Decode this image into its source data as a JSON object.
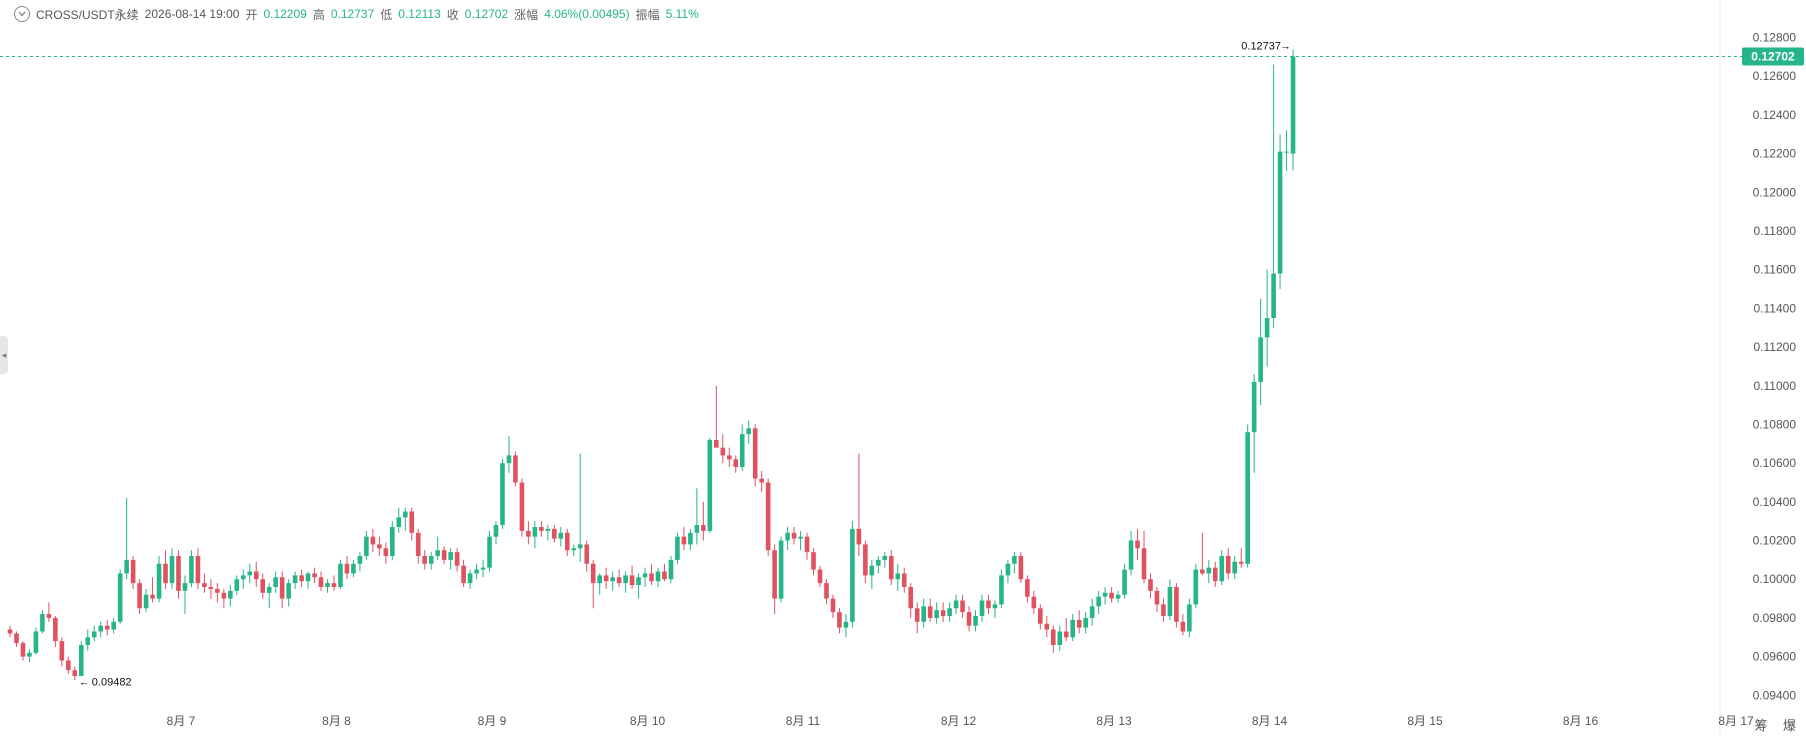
{
  "header": {
    "symbol": "CROSS/USDT永续",
    "datetime": "2026-08-14 19:00",
    "open_label": "开",
    "open": "0.12209",
    "high_label": "高",
    "high": "0.12737",
    "low_label": "低",
    "low": "0.12113",
    "close_label": "收",
    "close": "0.12702",
    "change_label": "涨幅",
    "change": "4.06%(0.00495)",
    "amplitude_label": "振幅",
    "amplitude": "5.11%"
  },
  "corner_text": "筹 爆",
  "colors": {
    "up": "#26b589",
    "down": "#e0525f",
    "accent": "#26b589"
  },
  "chart_data": {
    "type": "candlestick",
    "x_axis_labels": [
      "8月 7",
      "8月 8",
      "8月 9",
      "8月 10",
      "8月 11",
      "8月 12",
      "8月 13",
      "8月 14",
      "8月 15",
      "8月 16",
      "8月 17"
    ],
    "y_ticks": [
      "0.12800",
      "0.12600",
      "0.12400",
      "0.12200",
      "0.12000",
      "0.11800",
      "0.11600",
      "0.11400",
      "0.11200",
      "0.11000",
      "0.10800",
      "0.10600",
      "0.10400",
      "0.10200",
      "0.10000",
      "0.09800",
      "0.09600",
      "0.09400"
    ],
    "ylim": [
      0.0935,
      0.1288
    ],
    "current_price": "0.12702",
    "high_marker": "0.12737",
    "low_marker": "0.09482",
    "grid": false,
    "candles": [
      [
        0.0974,
        0.0976,
        0.097,
        0.0972
      ],
      [
        0.0972,
        0.0973,
        0.0965,
        0.0967
      ],
      [
        0.0967,
        0.0968,
        0.0958,
        0.096
      ],
      [
        0.096,
        0.0964,
        0.0957,
        0.0962
      ],
      [
        0.0962,
        0.0975,
        0.0961,
        0.0973
      ],
      [
        0.0973,
        0.0984,
        0.0972,
        0.0982
      ],
      [
        0.0982,
        0.0988,
        0.0978,
        0.098
      ],
      [
        0.098,
        0.0981,
        0.0965,
        0.0968
      ],
      [
        0.0968,
        0.097,
        0.0955,
        0.0958
      ],
      [
        0.0958,
        0.096,
        0.0951,
        0.0953
      ],
      [
        0.0953,
        0.0955,
        0.0948,
        0.095
      ],
      [
        0.095,
        0.0968,
        0.095,
        0.0966
      ],
      [
        0.0966,
        0.0974,
        0.0963,
        0.097
      ],
      [
        0.097,
        0.0976,
        0.0968,
        0.0973
      ],
      [
        0.0973,
        0.0978,
        0.097,
        0.0976
      ],
      [
        0.0976,
        0.0979,
        0.0971,
        0.0974
      ],
      [
        0.0974,
        0.098,
        0.0972,
        0.0978
      ],
      [
        0.0978,
        0.1005,
        0.0977,
        0.1003
      ],
      [
        0.1003,
        0.1042,
        0.1,
        0.101
      ],
      [
        0.101,
        0.1012,
        0.0995,
        0.0998
      ],
      [
        0.0998,
        0.1,
        0.0982,
        0.0985
      ],
      [
        0.0985,
        0.0995,
        0.0983,
        0.0992
      ],
      [
        0.0992,
        0.1001,
        0.0988,
        0.099
      ],
      [
        0.099,
        0.1012,
        0.0988,
        0.1008
      ],
      [
        0.1008,
        0.1015,
        0.0995,
        0.0998
      ],
      [
        0.0998,
        0.1016,
        0.0995,
        0.1012
      ],
      [
        0.1012,
        0.1015,
        0.099,
        0.0994
      ],
      [
        0.0994,
        0.1002,
        0.0982,
        0.0998
      ],
      [
        0.0998,
        0.1015,
        0.0996,
        0.1012
      ],
      [
        0.1012,
        0.1016,
        0.0995,
        0.0998
      ],
      [
        0.0998,
        0.1003,
        0.0993,
        0.0996
      ],
      [
        0.0996,
        0.1,
        0.099,
        0.0995
      ],
      [
        0.0995,
        0.0998,
        0.0988,
        0.0993
      ],
      [
        0.0993,
        0.0995,
        0.0985,
        0.099
      ],
      [
        0.099,
        0.0997,
        0.0986,
        0.0994
      ],
      [
        0.0994,
        0.1002,
        0.0992,
        0.1
      ],
      [
        0.1,
        0.1005,
        0.0995,
        0.1002
      ],
      [
        0.1002,
        0.1008,
        0.0998,
        0.1004
      ],
      [
        0.1004,
        0.1009,
        0.0996,
        0.1
      ],
      [
        0.1,
        0.1003,
        0.099,
        0.0993
      ],
      [
        0.0993,
        0.0998,
        0.0985,
        0.0996
      ],
      [
        0.0996,
        0.1004,
        0.0993,
        0.1001
      ],
      [
        0.1001,
        0.1004,
        0.0985,
        0.099
      ],
      [
        0.099,
        0.1,
        0.0986,
        0.0998
      ],
      [
        0.0998,
        0.1004,
        0.0995,
        0.1002
      ],
      [
        0.1002,
        0.1005,
        0.0996,
        0.0999
      ],
      [
        0.0999,
        0.1004,
        0.0995,
        0.1003
      ],
      [
        0.1003,
        0.1006,
        0.0998,
        0.1001
      ],
      [
        0.1001,
        0.1004,
        0.0994,
        0.0996
      ],
      [
        0.0996,
        0.1,
        0.0993,
        0.0998
      ],
      [
        0.0998,
        0.1002,
        0.0994,
        0.0996
      ],
      [
        0.0996,
        0.101,
        0.0995,
        0.1008
      ],
      [
        0.1008,
        0.1012,
        0.1,
        0.1003
      ],
      [
        0.1003,
        0.101,
        0.1001,
        0.1008
      ],
      [
        0.1008,
        0.1014,
        0.1004,
        0.1012
      ],
      [
        0.1012,
        0.1025,
        0.101,
        0.1022
      ],
      [
        0.1022,
        0.1026,
        0.1014,
        0.1018
      ],
      [
        0.1018,
        0.1022,
        0.1012,
        0.1016
      ],
      [
        0.1016,
        0.1019,
        0.1008,
        0.1012
      ],
      [
        0.1012,
        0.103,
        0.101,
        0.1027
      ],
      [
        0.1027,
        0.1037,
        0.1024,
        0.1032
      ],
      [
        0.1032,
        0.1037,
        0.1025,
        0.1035
      ],
      [
        0.1035,
        0.1037,
        0.102,
        0.1024
      ],
      [
        0.1024,
        0.1026,
        0.1008,
        0.1012
      ],
      [
        0.1012,
        0.1015,
        0.1005,
        0.1008
      ],
      [
        0.1008,
        0.1014,
        0.1005,
        0.1012
      ],
      [
        0.1012,
        0.1022,
        0.101,
        0.1015
      ],
      [
        0.1015,
        0.1017,
        0.1008,
        0.101
      ],
      [
        0.101,
        0.1016,
        0.1005,
        0.1014
      ],
      [
        0.1014,
        0.1016,
        0.1004,
        0.1007
      ],
      [
        0.1007,
        0.101,
        0.0996,
        0.0998
      ],
      [
        0.0998,
        0.1005,
        0.0995,
        0.1003
      ],
      [
        0.1003,
        0.1008,
        0.1,
        0.1005
      ],
      [
        0.1005,
        0.101,
        0.1001,
        0.1006
      ],
      [
        0.1006,
        0.1025,
        0.1004,
        0.1022
      ],
      [
        0.1022,
        0.103,
        0.1018,
        0.1028
      ],
      [
        0.1028,
        0.1062,
        0.1026,
        0.106
      ],
      [
        0.106,
        0.1074,
        0.1055,
        0.1064
      ],
      [
        0.1064,
        0.1066,
        0.1048,
        0.105
      ],
      [
        0.105,
        0.1052,
        0.1022,
        0.1025
      ],
      [
        0.1025,
        0.103,
        0.1018,
        0.1022
      ],
      [
        0.1022,
        0.103,
        0.1016,
        0.1027
      ],
      [
        0.1027,
        0.103,
        0.1022,
        0.1025
      ],
      [
        0.1025,
        0.1028,
        0.102,
        0.1026
      ],
      [
        0.1026,
        0.1028,
        0.1019,
        0.1021
      ],
      [
        0.1021,
        0.1027,
        0.1017,
        0.1024
      ],
      [
        0.1024,
        0.1026,
        0.1012,
        0.1015
      ],
      [
        0.1015,
        0.1018,
        0.1012,
        0.1016
      ],
      [
        0.1016,
        0.1065,
        0.1009,
        0.1018
      ],
      [
        0.1018,
        0.102,
        0.1004,
        0.1008
      ],
      [
        0.1008,
        0.101,
        0.0985,
        0.0998
      ],
      [
        0.0998,
        0.1003,
        0.0992,
        0.1002
      ],
      [
        0.1002,
        0.1006,
        0.0995,
        0.0999
      ],
      [
        0.0999,
        0.1004,
        0.0994,
        0.1001
      ],
      [
        0.1001,
        0.1005,
        0.0996,
        0.0998
      ],
      [
        0.0998,
        0.1004,
        0.0993,
        0.1002
      ],
      [
        0.1002,
        0.1007,
        0.0995,
        0.0997
      ],
      [
        0.0997,
        0.1003,
        0.099,
        0.1001
      ],
      [
        0.1001,
        0.1006,
        0.0996,
        0.1003
      ],
      [
        0.1003,
        0.1008,
        0.0997,
        0.0999
      ],
      [
        0.0999,
        0.1006,
        0.0996,
        0.1004
      ],
      [
        0.1004,
        0.1008,
        0.0999,
        0.1
      ],
      [
        0.1,
        0.1012,
        0.0998,
        0.101
      ],
      [
        0.101,
        0.1024,
        0.1008,
        0.1022
      ],
      [
        0.1022,
        0.1027,
        0.1015,
        0.1018
      ],
      [
        0.1018,
        0.1026,
        0.1015,
        0.1024
      ],
      [
        0.1024,
        0.1047,
        0.1018,
        0.1028
      ],
      [
        0.1028,
        0.104,
        0.102,
        0.1025
      ],
      [
        0.1025,
        0.1073,
        0.1024,
        0.1072
      ],
      [
        0.1072,
        0.11,
        0.107,
        0.1068
      ],
      [
        0.1068,
        0.1075,
        0.106,
        0.1064
      ],
      [
        0.1064,
        0.1068,
        0.1058,
        0.1062
      ],
      [
        0.1062,
        0.1064,
        0.1055,
        0.1058
      ],
      [
        0.1058,
        0.108,
        0.1056,
        0.1075
      ],
      [
        0.1075,
        0.1082,
        0.107,
        0.1078
      ],
      [
        0.1078,
        0.108,
        0.1048,
        0.1052
      ],
      [
        0.1052,
        0.1056,
        0.1045,
        0.105
      ],
      [
        0.105,
        0.1052,
        0.1012,
        0.1015
      ],
      [
        0.1015,
        0.1018,
        0.0982,
        0.099
      ],
      [
        0.099,
        0.1022,
        0.0988,
        0.102
      ],
      [
        0.102,
        0.1027,
        0.1015,
        0.1024
      ],
      [
        0.1024,
        0.1027,
        0.1018,
        0.1021
      ],
      [
        0.1021,
        0.1025,
        0.1015,
        0.1022
      ],
      [
        0.1022,
        0.1024,
        0.101,
        0.1014
      ],
      [
        0.1014,
        0.1016,
        0.1002,
        0.1005
      ],
      [
        0.1005,
        0.1007,
        0.0996,
        0.0998
      ],
      [
        0.0998,
        0.1,
        0.0987,
        0.099
      ],
      [
        0.099,
        0.0992,
        0.098,
        0.0983
      ],
      [
        0.0983,
        0.0985,
        0.0972,
        0.0975
      ],
      [
        0.0975,
        0.0982,
        0.097,
        0.0978
      ],
      [
        0.0978,
        0.103,
        0.0975,
        0.1026
      ],
      [
        0.1026,
        0.1065,
        0.1012,
        0.1018
      ],
      [
        0.1018,
        0.102,
        0.0998,
        0.1002
      ],
      [
        0.1002,
        0.101,
        0.0995,
        0.1007
      ],
      [
        0.1007,
        0.1012,
        0.1003,
        0.101
      ],
      [
        0.101,
        0.1014,
        0.1006,
        0.1012
      ],
      [
        0.1012,
        0.1015,
        0.0997,
        0.1
      ],
      [
        0.1,
        0.1008,
        0.0994,
        0.1003
      ],
      [
        0.1003,
        0.1006,
        0.0993,
        0.0996
      ],
      [
        0.0996,
        0.0998,
        0.098,
        0.0985
      ],
      [
        0.0985,
        0.0988,
        0.0972,
        0.0978
      ],
      [
        0.0978,
        0.099,
        0.0975,
        0.0986
      ],
      [
        0.0986,
        0.099,
        0.0978,
        0.098
      ],
      [
        0.098,
        0.0988,
        0.0977,
        0.0984
      ],
      [
        0.0984,
        0.0988,
        0.0978,
        0.0981
      ],
      [
        0.0981,
        0.0988,
        0.0978,
        0.0985
      ],
      [
        0.0985,
        0.0992,
        0.0982,
        0.0989
      ],
      [
        0.0989,
        0.0992,
        0.098,
        0.0983
      ],
      [
        0.0983,
        0.0986,
        0.0973,
        0.0976
      ],
      [
        0.0976,
        0.0984,
        0.0973,
        0.0981
      ],
      [
        0.0981,
        0.0992,
        0.0978,
        0.0989
      ],
      [
        0.0989,
        0.0992,
        0.0982,
        0.0985
      ],
      [
        0.0985,
        0.0989,
        0.098,
        0.0987
      ],
      [
        0.0987,
        0.1005,
        0.0985,
        0.1002
      ],
      [
        0.1002,
        0.101,
        0.0998,
        0.1008
      ],
      [
        0.1008,
        0.1014,
        0.1003,
        0.1012
      ],
      [
        0.1012,
        0.1014,
        0.0998,
        0.1
      ],
      [
        0.1,
        0.1002,
        0.0988,
        0.0991
      ],
      [
        0.0991,
        0.0994,
        0.0982,
        0.0985
      ],
      [
        0.0985,
        0.0987,
        0.0974,
        0.0977
      ],
      [
        0.0977,
        0.0981,
        0.097,
        0.0974
      ],
      [
        0.0974,
        0.0976,
        0.0962,
        0.0966
      ],
      [
        0.0966,
        0.0976,
        0.0963,
        0.0973
      ],
      [
        0.0973,
        0.098,
        0.0968,
        0.097
      ],
      [
        0.097,
        0.0982,
        0.0968,
        0.0979
      ],
      [
        0.0979,
        0.0984,
        0.0972,
        0.0975
      ],
      [
        0.0975,
        0.0983,
        0.0972,
        0.098
      ],
      [
        0.098,
        0.099,
        0.0976,
        0.0986
      ],
      [
        0.0986,
        0.0994,
        0.0982,
        0.0991
      ],
      [
        0.0991,
        0.0996,
        0.0987,
        0.0993
      ],
      [
        0.0993,
        0.0996,
        0.0988,
        0.099
      ],
      [
        0.099,
        0.0994,
        0.0988,
        0.0992
      ],
      [
        0.0992,
        0.1008,
        0.099,
        0.1005
      ],
      [
        0.1005,
        0.1025,
        0.1002,
        0.102
      ],
      [
        0.102,
        0.1026,
        0.101,
        0.1016
      ],
      [
        0.1016,
        0.1025,
        0.0998,
        0.1
      ],
      [
        0.1,
        0.1003,
        0.099,
        0.0994
      ],
      [
        0.0994,
        0.0996,
        0.0983,
        0.0987
      ],
      [
        0.0987,
        0.099,
        0.0978,
        0.0981
      ],
      [
        0.0981,
        0.1,
        0.0979,
        0.0996
      ],
      [
        0.0996,
        0.0998,
        0.0975,
        0.0978
      ],
      [
        0.0978,
        0.0982,
        0.0971,
        0.0973
      ],
      [
        0.0973,
        0.099,
        0.097,
        0.0987
      ],
      [
        0.0987,
        0.1008,
        0.0985,
        0.1005
      ],
      [
        0.1005,
        0.1024,
        0.1002,
        0.1003
      ],
      [
        0.1003,
        0.101,
        0.0998,
        0.1006
      ],
      [
        0.1006,
        0.1009,
        0.0996,
        0.0999
      ],
      [
        0.0999,
        0.1015,
        0.0997,
        0.1012
      ],
      [
        0.1012,
        0.1016,
        0.1,
        0.1003
      ],
      [
        0.1003,
        0.1012,
        0.1,
        0.1009
      ],
      [
        0.1009,
        0.1016,
        0.1006,
        0.1008
      ],
      [
        0.1008,
        0.108,
        0.1006,
        0.1076
      ],
      [
        0.1076,
        0.1106,
        0.1055,
        0.1102
      ],
      [
        0.1102,
        0.1145,
        0.109,
        0.1125
      ],
      [
        0.1125,
        0.116,
        0.111,
        0.1135
      ],
      [
        0.1135,
        0.1266,
        0.113,
        0.1158
      ],
      [
        0.1158,
        0.123,
        0.115,
        0.1221
      ],
      [
        0.1221,
        0.1232,
        0.1211,
        0.1221
      ],
      [
        0.122,
        0.12737,
        0.12113,
        0.12702
      ]
    ]
  }
}
